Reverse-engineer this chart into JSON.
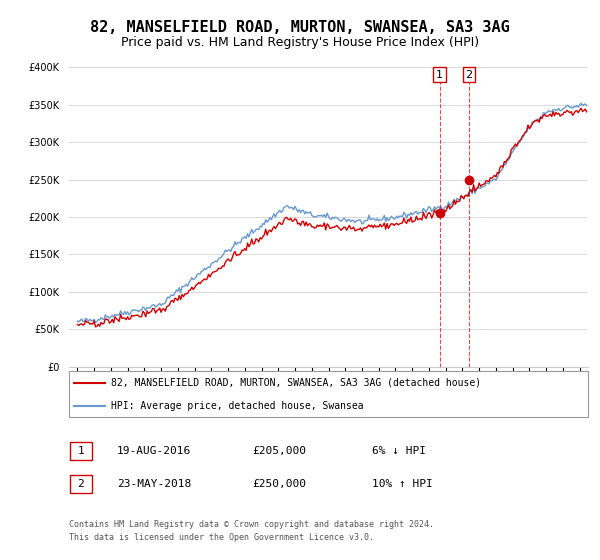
{
  "title": "82, MANSELFIELD ROAD, MURTON, SWANSEA, SA3 3AG",
  "subtitle": "Price paid vs. HM Land Registry's House Price Index (HPI)",
  "title_fontsize": 11,
  "subtitle_fontsize": 9,
  "ylim": [
    0,
    400000
  ],
  "yticks": [
    0,
    50000,
    100000,
    150000,
    200000,
    250000,
    300000,
    350000,
    400000
  ],
  "ytick_labels": [
    "£0",
    "£50K",
    "£100K",
    "£150K",
    "£200K",
    "£250K",
    "£300K",
    "£350K",
    "£400K"
  ],
  "hpi_color": "#6699cc",
  "price_color": "#cc0000",
  "purchase1_date": 2016.64,
  "purchase2_date": 2018.39,
  "purchase1_price": 205000,
  "purchase2_price": 250000,
  "legend_label_red": "82, MANSELFIELD ROAD, MURTON, SWANSEA, SA3 3AG (detached house)",
  "legend_label_blue": "HPI: Average price, detached house, Swansea",
  "table_row1": [
    "1",
    "19-AUG-2016",
    "£205,000",
    "6% ↓ HPI"
  ],
  "table_row2": [
    "2",
    "23-MAY-2018",
    "£250,000",
    "10% ↑ HPI"
  ],
  "footnote1": "Contains HM Land Registry data © Crown copyright and database right 2024.",
  "footnote2": "This data is licensed under the Open Government Licence v3.0.",
  "background_color": "#ffffff",
  "grid_color": "#cccccc",
  "vline_color": "#cc0000"
}
